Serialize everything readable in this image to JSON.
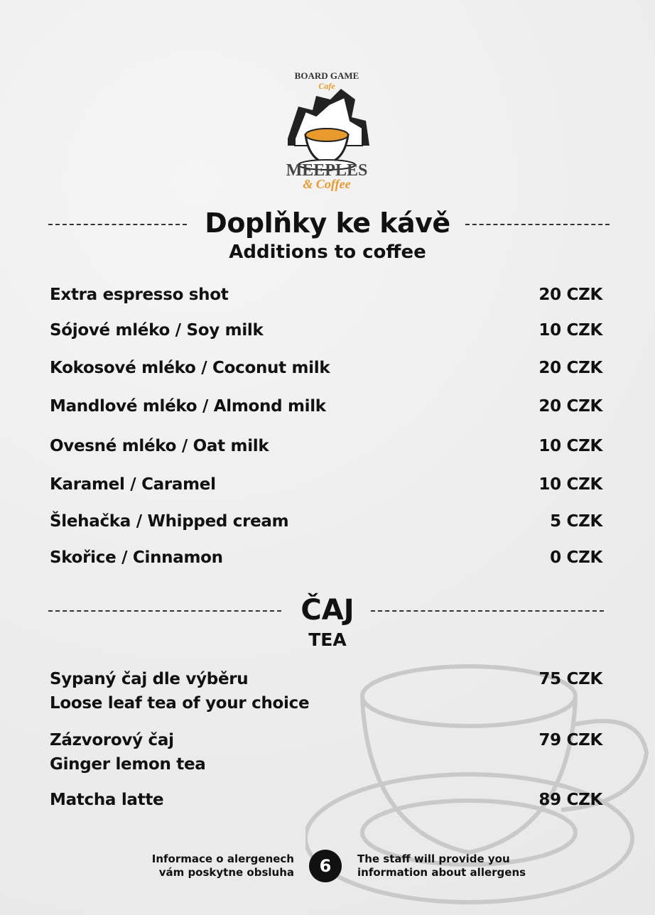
{
  "logo": {
    "line1": "BOARD GAME",
    "line2": "Cafe",
    "line3": "MEEPLES",
    "line4": "& Coffee",
    "accent": "#e89a2c"
  },
  "section_coffee": {
    "title": "Doplňky ke kávě",
    "subtitle": "Additions to coffee",
    "items": [
      {
        "name": "Extra espresso shot",
        "price": "20 CZK"
      },
      {
        "name": "Sójové mléko / Soy milk",
        "price": "10 CZK"
      },
      {
        "name": "Kokosové mléko / Coconut milk",
        "price": "20 CZK"
      },
      {
        "name": "Mandlové mléko / Almond milk",
        "price": "20 CZK"
      },
      {
        "name": "Ovesné mléko / Oat milk",
        "price": "10 CZK"
      },
      {
        "name": "Karamel / Caramel",
        "price": "10 CZK"
      },
      {
        "name": "Šlehačka / Whipped cream",
        "price": "5 CZK"
      },
      {
        "name": "Skořice / Cinnamon",
        "price": "0 CZK"
      }
    ]
  },
  "section_tea": {
    "title": "ČAJ",
    "subtitle": "TEA",
    "items": [
      {
        "name": "Sypaný čaj dle výběru",
        "name_en": "Loose leaf tea of your choice",
        "price": "75 CZK"
      },
      {
        "name": "Zázvorový čaj",
        "name_en": "Ginger lemon tea",
        "price": "79 CZK"
      },
      {
        "name": "Matcha latte",
        "price": "89 CZK"
      }
    ]
  },
  "footer": {
    "cz_line1": "Informace o alergenech",
    "cz_line2": "vám poskytne obsluha",
    "page_number": "6",
    "en_line1": "The staff will provide you",
    "en_line2": "information about allergens"
  }
}
